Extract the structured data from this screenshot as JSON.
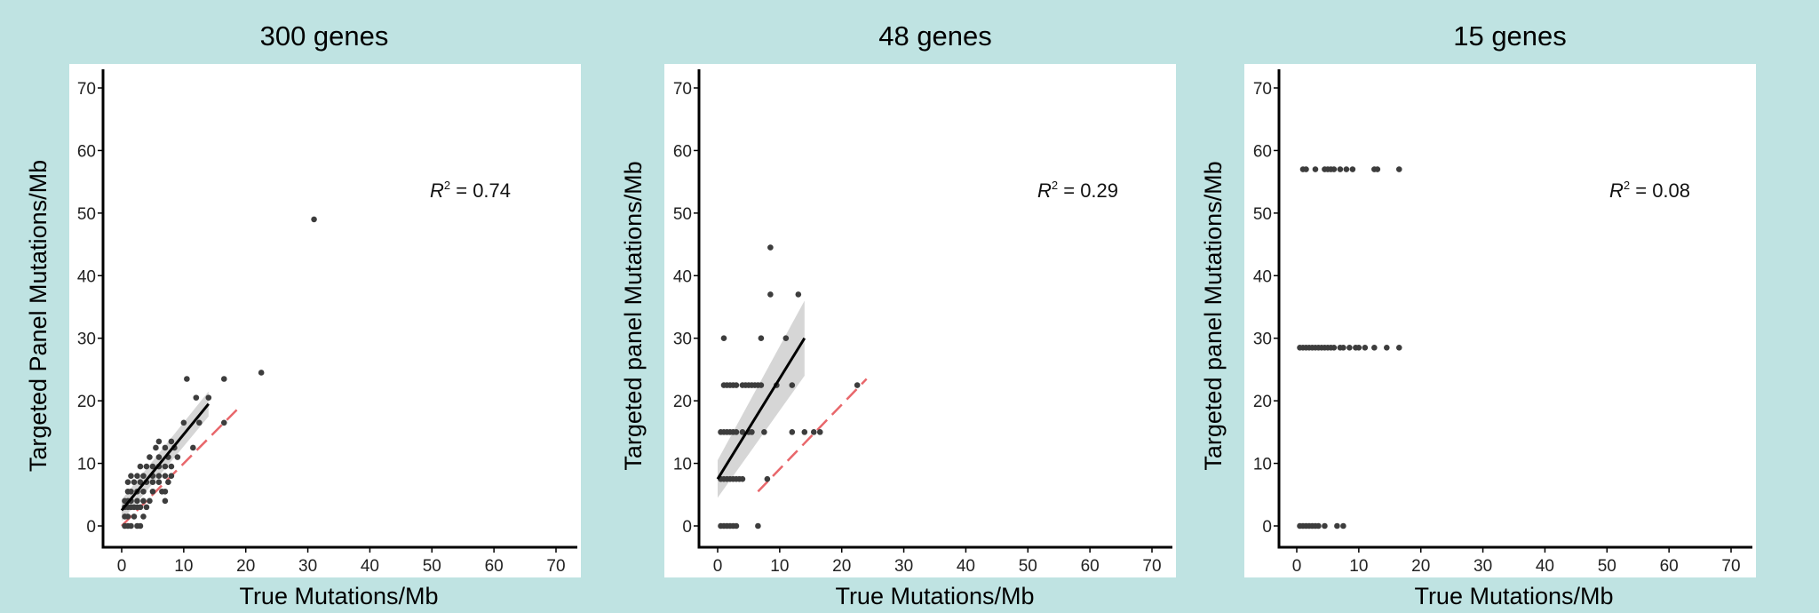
{
  "chart_data": [
    {
      "type": "scatter",
      "title": "300 genes",
      "xlabel": "True Mutations/Mb",
      "ylabel": "Targeted Panel Mutations/Mb",
      "xlim": [
        -3,
        73
      ],
      "ylim": [
        -3,
        73
      ],
      "xticks": [
        0,
        10,
        20,
        30,
        40,
        50,
        60,
        70
      ],
      "yticks": [
        0,
        10,
        20,
        30,
        40,
        50,
        60,
        70
      ],
      "grid": false,
      "annotation": {
        "label": "R",
        "sup": "2",
        "eq": " = ",
        "value": "0.74"
      },
      "fit": {
        "x": [
          0,
          14
        ],
        "y": [
          2.5,
          19.5
        ],
        "ci_upper": [
          4.2,
          21.5
        ],
        "ci_lower": [
          0.8,
          17.5
        ]
      },
      "identity": {
        "x": [
          0,
          19
        ],
        "y": [
          0,
          19
        ]
      },
      "points": [
        [
          0.5,
          0
        ],
        [
          1,
          0
        ],
        [
          1.5,
          0
        ],
        [
          2.5,
          0
        ],
        [
          3,
          0
        ],
        [
          0.5,
          1.5
        ],
        [
          1,
          1.5
        ],
        [
          2,
          1.5
        ],
        [
          3.5,
          1.5
        ],
        [
          0.5,
          3
        ],
        [
          1,
          3
        ],
        [
          1.5,
          3
        ],
        [
          2,
          3
        ],
        [
          2.5,
          3
        ],
        [
          3,
          3
        ],
        [
          4,
          3
        ],
        [
          0.5,
          4
        ],
        [
          1,
          4
        ],
        [
          1.5,
          4
        ],
        [
          2.5,
          4
        ],
        [
          3.5,
          4
        ],
        [
          4.5,
          4
        ],
        [
          1,
          5.5
        ],
        [
          1.5,
          5.5
        ],
        [
          2.5,
          5.5
        ],
        [
          3.5,
          5.5
        ],
        [
          5,
          5.5
        ],
        [
          6.5,
          5.5
        ],
        [
          1,
          7
        ],
        [
          2,
          7
        ],
        [
          3,
          7
        ],
        [
          4,
          7
        ],
        [
          5,
          7
        ],
        [
          6,
          7
        ],
        [
          7.5,
          7
        ],
        [
          1.5,
          8
        ],
        [
          2.5,
          8
        ],
        [
          3.5,
          8
        ],
        [
          5,
          8
        ],
        [
          6,
          8
        ],
        [
          7,
          8
        ],
        [
          8,
          8
        ],
        [
          3,
          9.5
        ],
        [
          4,
          9.5
        ],
        [
          5,
          9.5
        ],
        [
          6,
          9.5
        ],
        [
          7,
          9.5
        ],
        [
          8,
          9.5
        ],
        [
          4.5,
          11
        ],
        [
          6,
          11
        ],
        [
          7.5,
          11
        ],
        [
          9,
          11
        ],
        [
          5.5,
          12.5
        ],
        [
          7,
          12.5
        ],
        [
          8.5,
          12.5
        ],
        [
          11.5,
          12.5
        ],
        [
          6,
          13.5
        ],
        [
          8,
          13.5
        ],
        [
          7,
          4
        ],
        [
          7,
          5.5
        ],
        [
          10,
          16.5
        ],
        [
          12.5,
          16.5
        ],
        [
          16.5,
          16.5
        ],
        [
          12,
          20.5
        ],
        [
          14,
          20.5
        ],
        [
          10.5,
          23.5
        ],
        [
          16.5,
          23.5
        ],
        [
          22.5,
          24.5
        ],
        [
          31,
          49
        ]
      ]
    },
    {
      "type": "scatter",
      "title": "48 genes",
      "xlabel": "True Mutations/Mb",
      "ylabel": "Targeted panel Mutations/Mb",
      "xlim": [
        -3,
        73
      ],
      "ylim": [
        -3,
        73
      ],
      "xticks": [
        0,
        10,
        20,
        30,
        40,
        50,
        60,
        70
      ],
      "yticks": [
        0,
        10,
        20,
        30,
        40,
        50,
        60,
        70
      ],
      "grid": false,
      "annotation": {
        "label": "R",
        "sup": "2",
        "eq": " = ",
        "value": "0.29"
      },
      "fit": {
        "x": [
          0,
          14
        ],
        "y": [
          7.5,
          30
        ],
        "ci_upper": [
          10.5,
          36
        ],
        "ci_lower": [
          4.5,
          24
        ]
      },
      "identity": {
        "x": [
          6.5,
          24
        ],
        "y": [
          5.5,
          23.5
        ]
      },
      "points": [
        [
          0.5,
          0
        ],
        [
          1,
          0
        ],
        [
          1.5,
          0
        ],
        [
          2,
          0
        ],
        [
          2.5,
          0
        ],
        [
          3,
          0
        ],
        [
          6.5,
          0
        ],
        [
          0.5,
          7.5
        ],
        [
          1,
          7.5
        ],
        [
          1.5,
          7.5
        ],
        [
          2,
          7.5
        ],
        [
          2.5,
          7.5
        ],
        [
          3,
          7.5
        ],
        [
          3.5,
          7.5
        ],
        [
          4,
          7.5
        ],
        [
          8,
          7.5
        ],
        [
          0.5,
          15
        ],
        [
          1,
          15
        ],
        [
          1.5,
          15
        ],
        [
          2,
          15
        ],
        [
          2.5,
          15
        ],
        [
          3,
          15
        ],
        [
          4,
          15
        ],
        [
          5,
          15
        ],
        [
          5.5,
          15
        ],
        [
          7.5,
          15
        ],
        [
          12,
          15
        ],
        [
          14,
          15
        ],
        [
          15.5,
          15
        ],
        [
          16.5,
          15
        ],
        [
          1,
          22.5
        ],
        [
          1.5,
          22.5
        ],
        [
          2,
          22.5
        ],
        [
          2.5,
          22.5
        ],
        [
          3,
          22.5
        ],
        [
          4,
          22.5
        ],
        [
          4.5,
          22.5
        ],
        [
          5,
          22.5
        ],
        [
          5.5,
          22.5
        ],
        [
          6,
          22.5
        ],
        [
          6.5,
          22.5
        ],
        [
          7,
          22.5
        ],
        [
          9.5,
          22.5
        ],
        [
          12,
          22.5
        ],
        [
          22.5,
          22.5
        ],
        [
          1,
          30
        ],
        [
          7,
          30
        ],
        [
          11,
          30
        ],
        [
          8.5,
          37
        ],
        [
          13,
          37
        ],
        [
          8.5,
          44.5
        ]
      ]
    },
    {
      "type": "scatter",
      "title": "15 genes",
      "xlabel": "True Mutations/Mb",
      "ylabel": "Targeted panel Mutations/Mb",
      "xlim": [
        -3,
        73
      ],
      "ylim": [
        -3,
        73
      ],
      "xticks": [
        0,
        10,
        20,
        30,
        40,
        50,
        60,
        70
      ],
      "yticks": [
        0,
        10,
        20,
        30,
        40,
        50,
        60,
        70
      ],
      "grid": false,
      "annotation": {
        "label": "R",
        "sup": "2",
        "eq": " = ",
        "value": "0.08"
      },
      "points": [
        [
          0.5,
          0
        ],
        [
          1,
          0
        ],
        [
          1.5,
          0
        ],
        [
          2,
          0
        ],
        [
          2.5,
          0
        ],
        [
          3,
          0
        ],
        [
          3.5,
          0
        ],
        [
          4.5,
          0
        ],
        [
          6.5,
          0
        ],
        [
          7.5,
          0
        ],
        [
          0.5,
          28.5
        ],
        [
          1,
          28.5
        ],
        [
          1.5,
          28.5
        ],
        [
          2,
          28.5
        ],
        [
          2.5,
          28.5
        ],
        [
          3,
          28.5
        ],
        [
          3.5,
          28.5
        ],
        [
          4,
          28.5
        ],
        [
          4.5,
          28.5
        ],
        [
          5,
          28.5
        ],
        [
          5.5,
          28.5
        ],
        [
          6,
          28.5
        ],
        [
          7,
          28.5
        ],
        [
          7.5,
          28.5
        ],
        [
          8.5,
          28.5
        ],
        [
          9.5,
          28.5
        ],
        [
          10,
          28.5
        ],
        [
          11,
          28.5
        ],
        [
          12.5,
          28.5
        ],
        [
          14.5,
          28.5
        ],
        [
          16.5,
          28.5
        ],
        [
          1,
          57
        ],
        [
          1.5,
          57
        ],
        [
          3,
          57
        ],
        [
          4.5,
          57
        ],
        [
          5,
          57
        ],
        [
          5.5,
          57
        ],
        [
          6,
          57
        ],
        [
          7,
          57
        ],
        [
          8,
          57
        ],
        [
          9,
          57
        ],
        [
          12.5,
          57
        ],
        [
          13,
          57
        ],
        [
          16.5,
          57
        ]
      ]
    }
  ]
}
